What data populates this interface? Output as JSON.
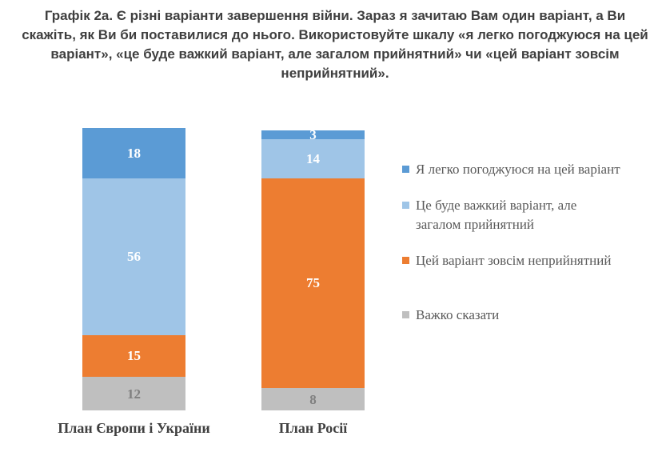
{
  "page": {
    "background": "#FFFFFF"
  },
  "chart_data": {
    "type": "bar",
    "stacked": true,
    "orientation": "vertical",
    "title": "Графік 2а. Є різні варіанти завершення війни. Зараз я зачитаю Вам один варіант, а Ви скажіть, як Ви би поставилися до нього. Використовуйте шкалу «я легко погоджуюся на цей варіант», «це буде важкий варіант, але загалом прийнятний» чи «цей варіант зовсім неприйнятний».",
    "categories": [
      "План Європи і України",
      "План Росії"
    ],
    "series": [
      {
        "name": "Я легко погоджуюся на цей варіант",
        "color": "#5B9BD5",
        "label_color": "#FFFFFF",
        "values": [
          18,
          3
        ]
      },
      {
        "name": "Це буде важкий варіант, але загалом прийнятний",
        "color": "#9FC5E7",
        "label_color": "#FFFFFF",
        "values": [
          56,
          14
        ]
      },
      {
        "name": "Цей варіант зовсім неприйнятний",
        "color": "#ED7D31",
        "label_color": "#FFFFFF",
        "values": [
          15,
          75
        ]
      },
      {
        "name": "Важко сказати",
        "color": "#BFBFBF",
        "label_color": "#7F7F7F",
        "values": [
          12,
          8
        ]
      }
    ],
    "legend_position": "right",
    "value_axis_visible": false,
    "gridlines": false,
    "ylim": [
      0,
      100
    ],
    "title_color": "#3F3F3F",
    "category_label_color": "#404040",
    "legend_text_color": "#595959"
  }
}
